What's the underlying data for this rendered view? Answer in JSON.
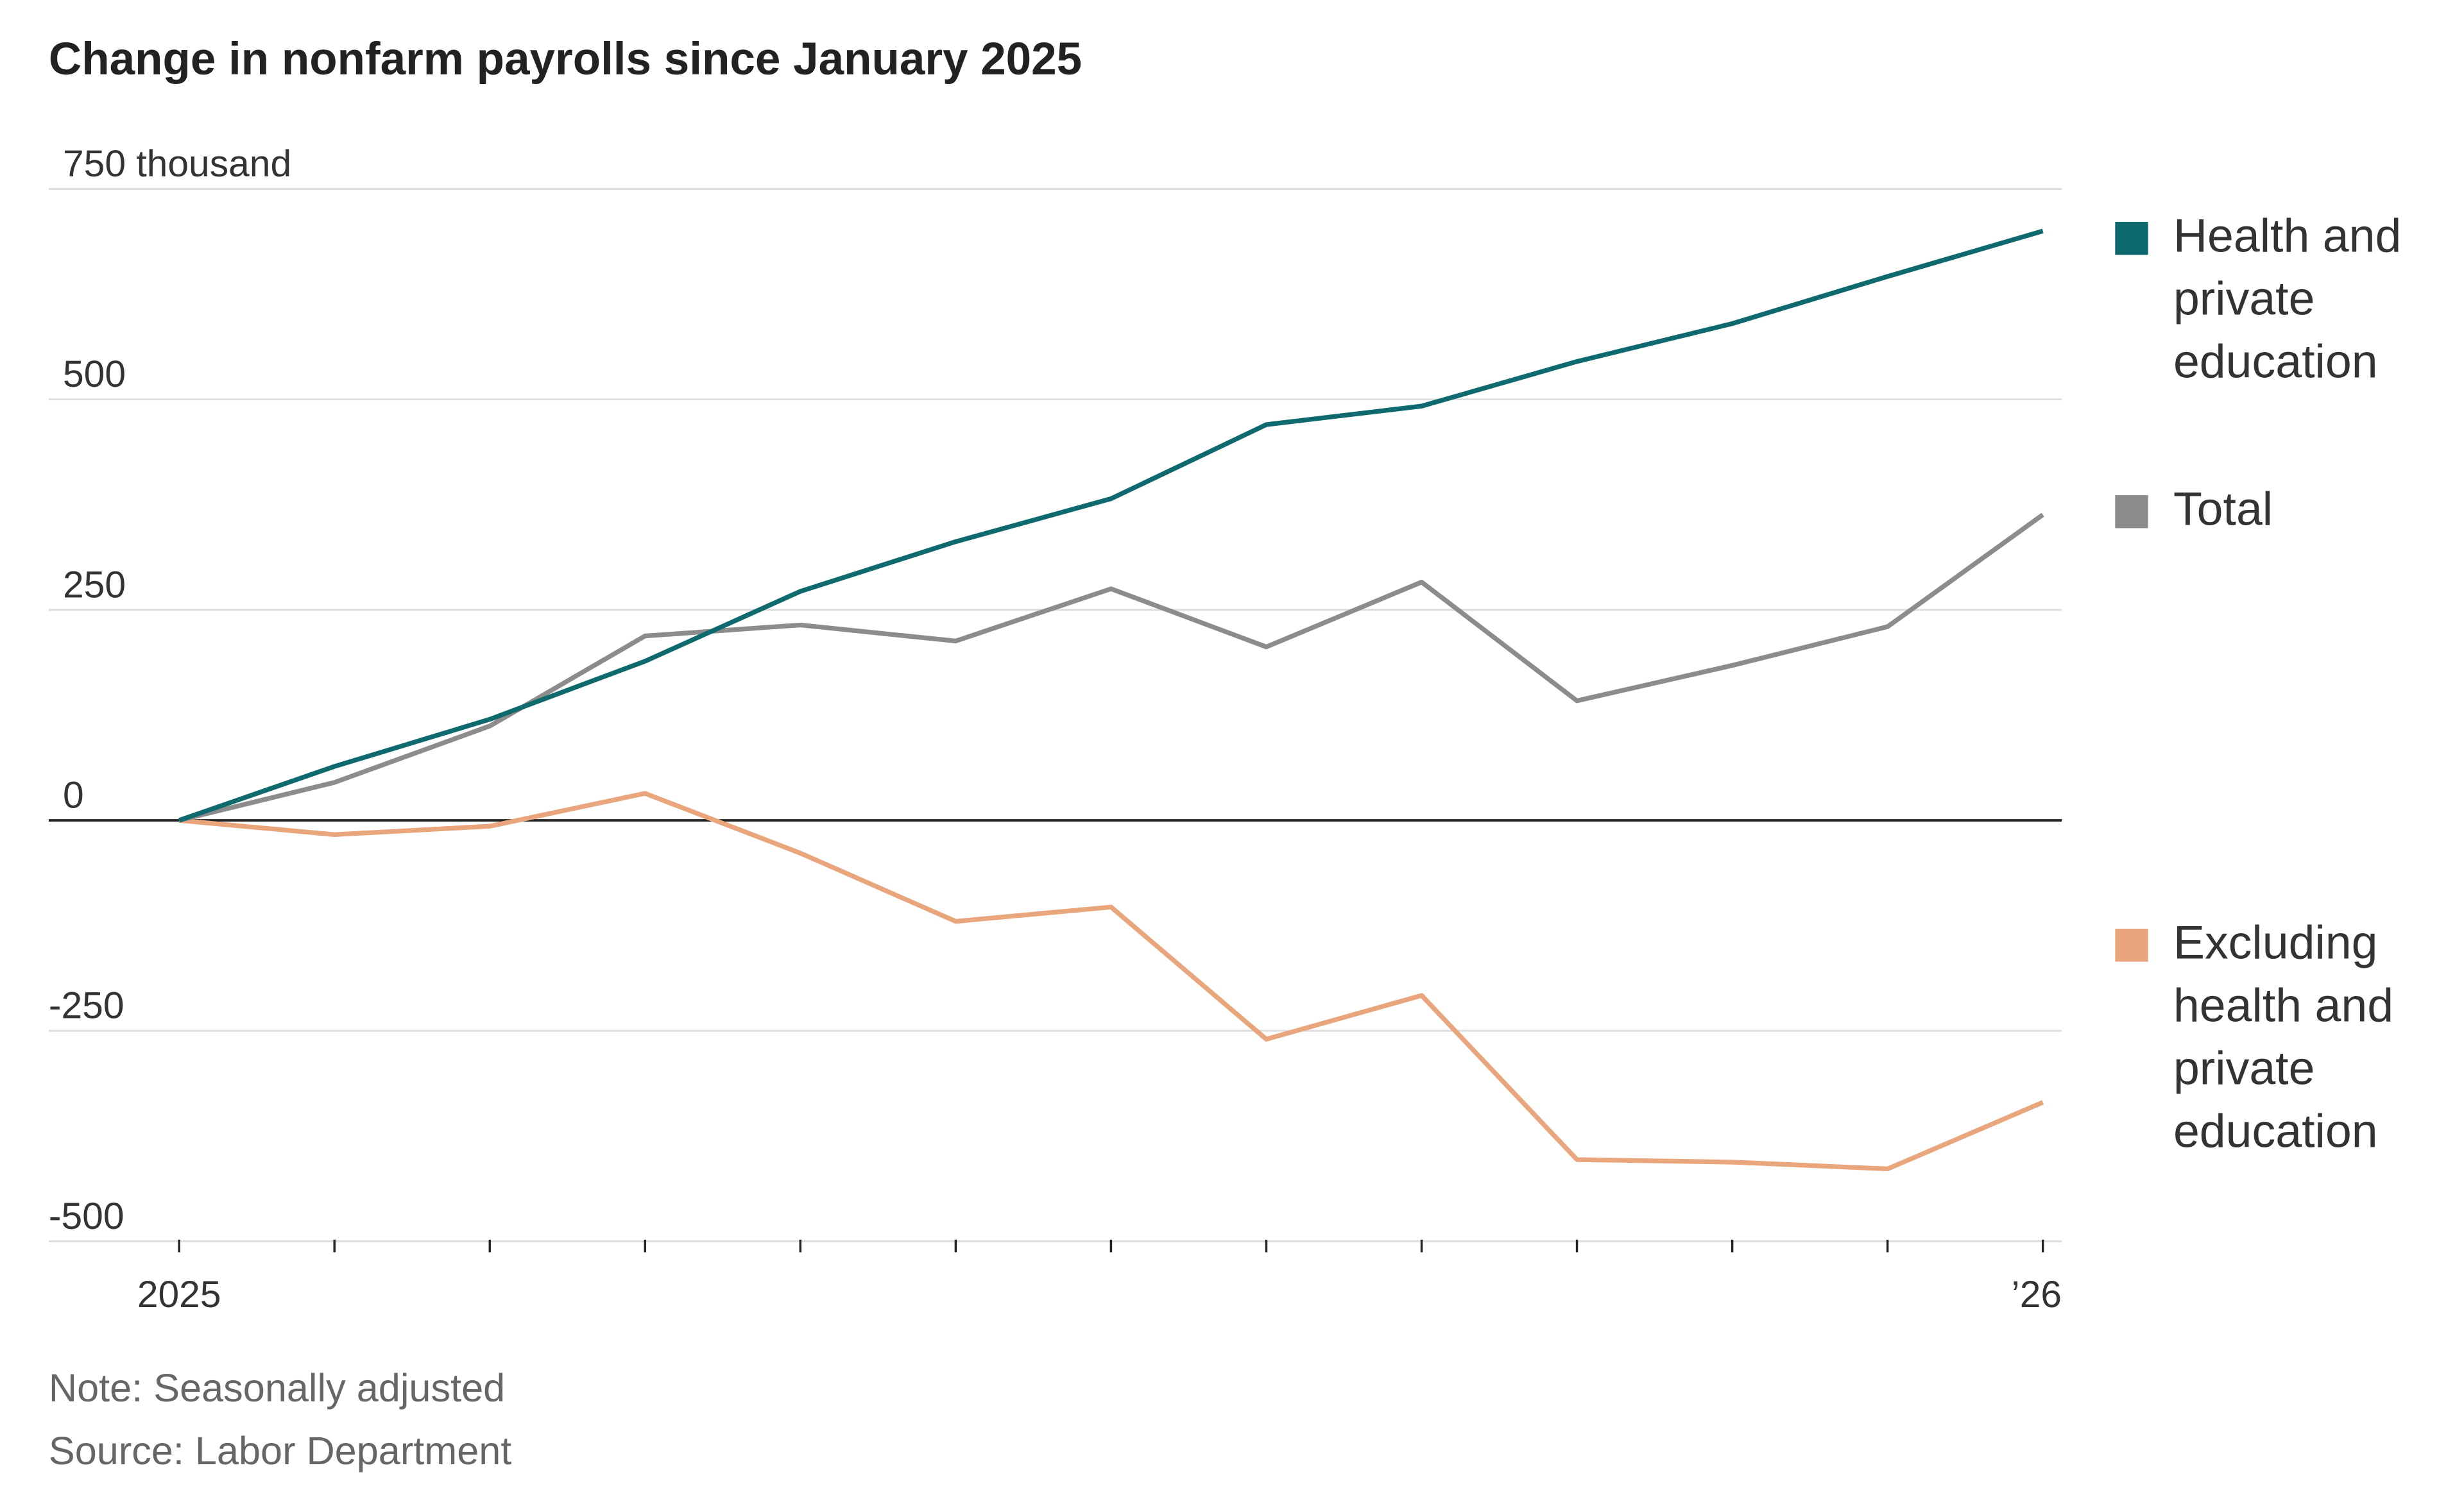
{
  "chart_data": {
    "type": "line",
    "title": "Change in nonfarm payrolls since January 2025",
    "ylabel_unit": "thousand",
    "ylim": [
      -500,
      750
    ],
    "yticks": [
      750,
      500,
      250,
      0,
      -250,
      -500
    ],
    "ytick_labels": [
      "750 thousand",
      "500",
      "250",
      "0",
      "-250",
      "-500"
    ],
    "x": [
      "2025-01",
      "2025-02",
      "2025-03",
      "2025-04",
      "2025-05",
      "2025-06",
      "2025-07",
      "2025-08",
      "2025-09",
      "2025-10",
      "2025-11",
      "2025-12",
      "2026-01"
    ],
    "xtick_labels": {
      "first": "2025",
      "last": "’26"
    },
    "grid": true,
    "legend_placement": "right",
    "series": [
      {
        "name": "Health and private education",
        "color": "#0e6a6e",
        "values": [
          0,
          64,
          120,
          189,
          272,
          331,
          382,
          470,
          492,
          545,
          590,
          646,
          700
        ]
      },
      {
        "name": "Total",
        "color": "#8c8c8c",
        "values": [
          0,
          45,
          112,
          219,
          232,
          213,
          275,
          206,
          283,
          142,
          184,
          230,
          363
        ]
      },
      {
        "name": "Excluding health and private education",
        "color": "#e9a57b",
        "values": [
          0,
          -17,
          -7,
          32,
          -39,
          -120,
          -103,
          -260,
          -208,
          -403,
          -406,
          -414,
          -335
        ]
      }
    ]
  },
  "footer": {
    "note": "Note: Seasonally adjusted",
    "source": "Source: Labor Department"
  }
}
